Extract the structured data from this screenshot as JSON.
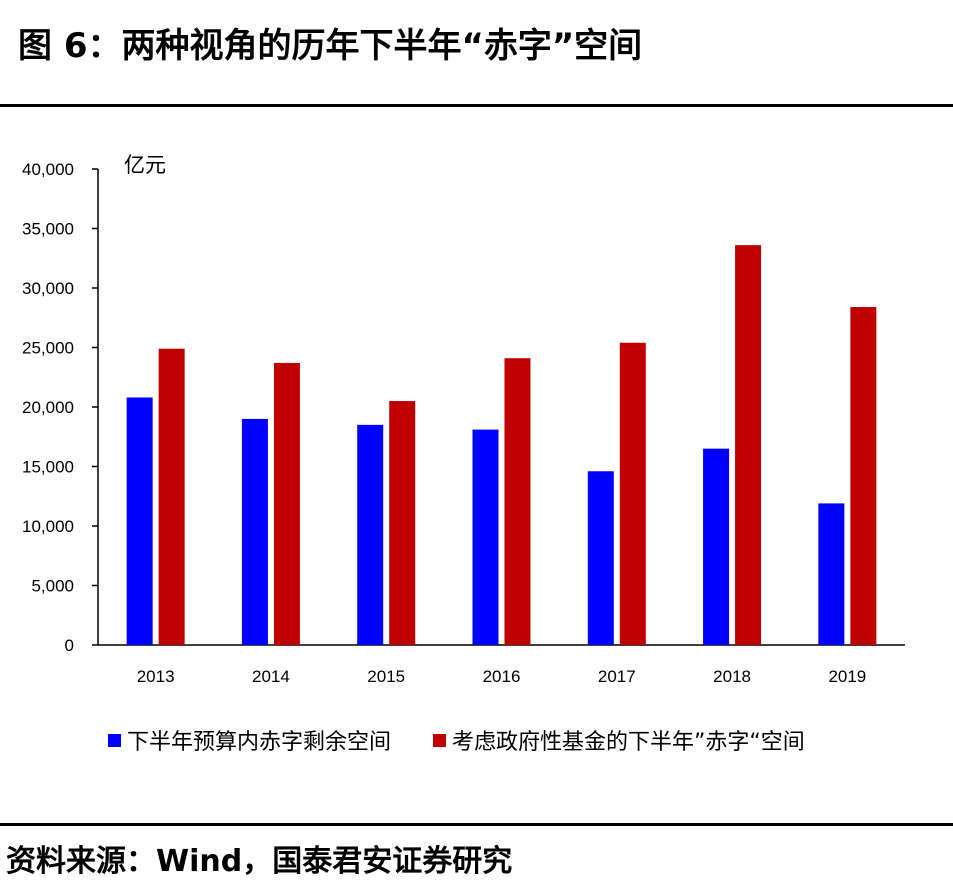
{
  "title": "图 6：两种视角的历年下半年“赤字”空间",
  "source": "资料来源：Wind，国泰君安证券研究",
  "colors": {
    "series1": "#0000ff",
    "series2": "#c00000",
    "axis": "#000000"
  },
  "chart_data": {
    "type": "bar",
    "title": "",
    "xlabel": "",
    "ylabel": "亿元",
    "ylim": [
      0,
      40000
    ],
    "yticks": [
      0,
      5000,
      10000,
      15000,
      20000,
      25000,
      30000,
      35000,
      40000
    ],
    "ytick_labels": [
      "0",
      "5,000",
      "10,000",
      "15,000",
      "20,000",
      "25,000",
      "30,000",
      "35,000",
      "40,000"
    ],
    "categories": [
      "2013",
      "2014",
      "2015",
      "2016",
      "2017",
      "2018",
      "2019"
    ],
    "series": [
      {
        "name": "下半年预算内赤字剩余空间",
        "color": "#0000ff",
        "values": [
          20800,
          19000,
          18500,
          18100,
          14600,
          16500,
          11900
        ]
      },
      {
        "name": "考虑政府性基金的下半年”赤字“空间",
        "color": "#c00000",
        "values": [
          24900,
          23700,
          20500,
          24100,
          25400,
          33600,
          28400
        ]
      }
    ],
    "grid": false,
    "legend_position": "bottom"
  }
}
